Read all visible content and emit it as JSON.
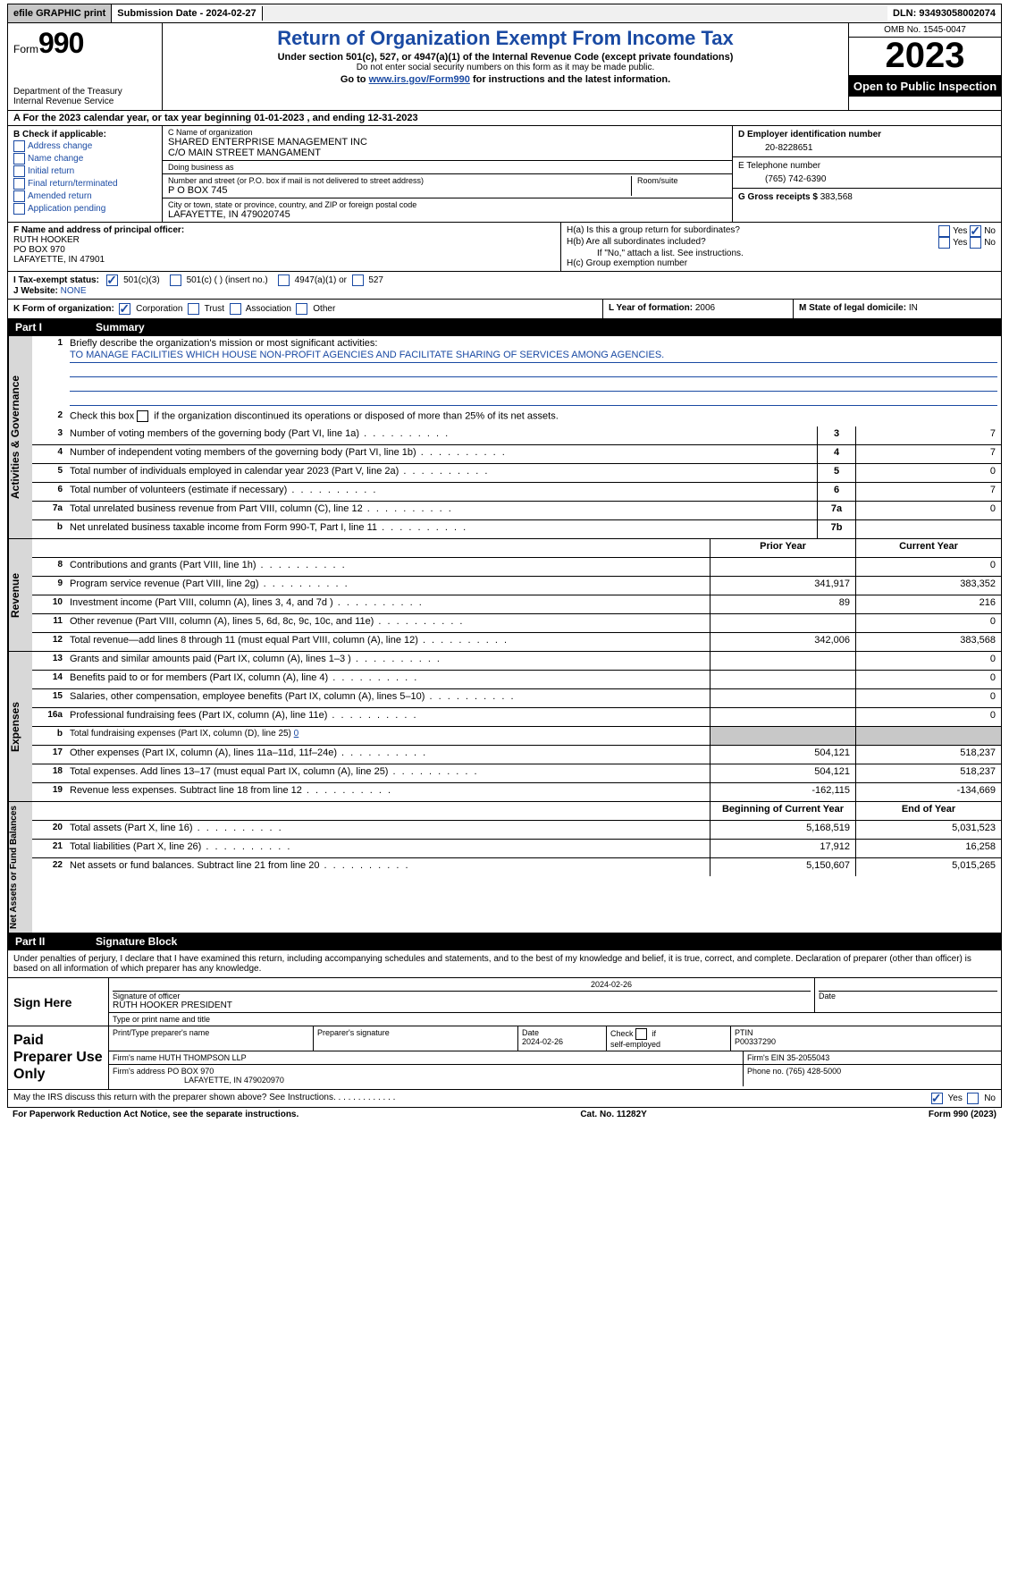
{
  "colors": {
    "link": "#1a4aa3",
    "header_bg": "#000000",
    "header_fg": "#ffffff",
    "side_bg": "#d8d8d8",
    "grey_cell": "#c8c8c8"
  },
  "topbar": {
    "efile": "efile GRAPHIC print",
    "submission_label": "Submission Date - ",
    "submission_date": "2024-02-27",
    "dln_label": "DLN: ",
    "dln": "93493058002074"
  },
  "header": {
    "form_prefix": "Form",
    "form_number": "990",
    "dept": "Department of the Treasury",
    "irs": "Internal Revenue Service",
    "title": "Return of Organization Exempt From Income Tax",
    "sub1": "Under section 501(c), 527, or 4947(a)(1) of the Internal Revenue Code (except private foundations)",
    "sub2": "Do not enter social security numbers on this form as it may be made public.",
    "sub3_pre": "Go to ",
    "sub3_link": "www.irs.gov/Form990",
    "sub3_post": " for instructions and the latest information.",
    "omb": "OMB No. 1545-0047",
    "year": "2023",
    "open": "Open to Public Inspection"
  },
  "row_a": "A   For the 2023 calendar year, or tax year beginning 01-01-2023     , and ending 12-31-2023",
  "box_b": {
    "title": "B Check if applicable:",
    "items": [
      "Address change",
      "Name change",
      "Initial return",
      "Final return/terminated",
      "Amended return",
      "Application pending"
    ]
  },
  "box_c": {
    "name_lbl": "C Name of organization",
    "name1": "SHARED ENTERPRISE MANAGEMENT INC",
    "name2": "C/O MAIN STREET MANGAMENT",
    "dba_lbl": "Doing business as",
    "dba": "",
    "street_lbl": "Number and street (or P.O. box if mail is not delivered to street address)",
    "street": "P O BOX 745",
    "room_lbl": "Room/suite",
    "city_lbl": "City or town, state or province, country, and ZIP or foreign postal code",
    "city": "LAFAYETTE, IN  479020745"
  },
  "box_d": {
    "lbl": "D Employer identification number",
    "val": "20-8228651"
  },
  "box_e": {
    "lbl": "E Telephone number",
    "val": "(765) 742-6390"
  },
  "box_g": {
    "lbl": "G Gross receipts $ ",
    "val": "383,568"
  },
  "box_f": {
    "lbl": "F  Name and address of principal officer:",
    "line1": "RUTH HOOKER",
    "line2": "PO BOX 970",
    "line3": "LAFAYETTE, IN  47901"
  },
  "box_h": {
    "a_lbl": "H(a)  Is this a group return for subordinates?",
    "a_yes": "Yes",
    "a_no": "No",
    "b_lbl": "H(b)  Are all subordinates included?",
    "b_yes": "Yes",
    "b_no": "No",
    "b_note": "If \"No,\" attach a list. See instructions.",
    "c_lbl": "H(c)  Group exemption number  "
  },
  "row_i": {
    "lbl": "I     Tax-exempt status:",
    "opt1": "501(c)(3)",
    "opt2": "501(c) (  ) (insert no.)",
    "opt3": "4947(a)(1) or",
    "opt4": "527"
  },
  "row_j": {
    "lbl": "J    Website: ",
    "val": "NONE"
  },
  "row_k": {
    "lbl": "K Form of organization:",
    "opts": [
      "Corporation",
      "Trust",
      "Association",
      "Other"
    ],
    "l_lbl": "L Year of formation: ",
    "l_val": "2006",
    "m_lbl": "M State of legal domicile: ",
    "m_val": "IN"
  },
  "part1": {
    "num": "Part I",
    "title": "Summary"
  },
  "governance": {
    "side": "Activities & Governance",
    "q1_lbl": "Briefly describe the organization's mission or most significant activities:",
    "q1_val": "TO MANAGE FACILITIES WHICH HOUSE NON-PROFIT AGENCIES AND FACILITATE SHARING OF SERVICES AMONG AGENCIES.",
    "q2": "Check this box         if the organization discontinued its operations or disposed of more than 25% of its net assets.",
    "rows": [
      {
        "n": "3",
        "d": "Number of voting members of the governing body (Part VI, line 1a)",
        "c": "3",
        "v": "7"
      },
      {
        "n": "4",
        "d": "Number of independent voting members of the governing body (Part VI, line 1b)",
        "c": "4",
        "v": "7"
      },
      {
        "n": "5",
        "d": "Total number of individuals employed in calendar year 2023 (Part V, line 2a)",
        "c": "5",
        "v": "0"
      },
      {
        "n": "6",
        "d": "Total number of volunteers (estimate if necessary)",
        "c": "6",
        "v": "7"
      },
      {
        "n": "7a",
        "d": "Total unrelated business revenue from Part VIII, column (C), line 12",
        "c": "7a",
        "v": "0"
      },
      {
        "n": " b",
        "d": "Net unrelated business taxable income from Form 990-T, Part I, line 11",
        "c": "7b",
        "v": ""
      }
    ]
  },
  "revenue": {
    "side": "Revenue",
    "hdr_prior": "Prior Year",
    "hdr_curr": "Current Year",
    "rows": [
      {
        "n": "8",
        "d": "Contributions and grants (Part VIII, line 1h)",
        "p": "",
        "c": "0"
      },
      {
        "n": "9",
        "d": "Program service revenue (Part VIII, line 2g)",
        "p": "341,917",
        "c": "383,352"
      },
      {
        "n": "10",
        "d": "Investment income (Part VIII, column (A), lines 3, 4, and 7d )",
        "p": "89",
        "c": "216"
      },
      {
        "n": "11",
        "d": "Other revenue (Part VIII, column (A), lines 5, 6d, 8c, 9c, 10c, and 11e)",
        "p": "",
        "c": "0"
      },
      {
        "n": "12",
        "d": "Total revenue—add lines 8 through 11 (must equal Part VIII, column (A), line 12)",
        "p": "342,006",
        "c": "383,568"
      }
    ]
  },
  "expenses": {
    "side": "Expenses",
    "rows": [
      {
        "n": "13",
        "d": "Grants and similar amounts paid (Part IX, column (A), lines 1–3 )",
        "p": "",
        "c": "0"
      },
      {
        "n": "14",
        "d": "Benefits paid to or for members (Part IX, column (A), line 4)",
        "p": "",
        "c": "0"
      },
      {
        "n": "15",
        "d": "Salaries, other compensation, employee benefits (Part IX, column (A), lines 5–10)",
        "p": "",
        "c": "0"
      },
      {
        "n": "16a",
        "d": "Professional fundraising fees (Part IX, column (A), line 11e)",
        "p": "",
        "c": "0"
      },
      {
        "n": "  b",
        "d": "Total fundraising expenses (Part IX, column (D), line 25) 0",
        "p": "grey",
        "c": "grey"
      },
      {
        "n": "17",
        "d": "Other expenses (Part IX, column (A), lines 11a–11d, 11f–24e)",
        "p": "504,121",
        "c": "518,237"
      },
      {
        "n": "18",
        "d": "Total expenses. Add lines 13–17 (must equal Part IX, column (A), line 25)",
        "p": "504,121",
        "c": "518,237"
      },
      {
        "n": "19",
        "d": "Revenue less expenses. Subtract line 18 from line 12",
        "p": "-162,115",
        "c": "-134,669"
      }
    ]
  },
  "netassets": {
    "side": "Net Assets or Fund Balances",
    "hdr_begin": "Beginning of Current Year",
    "hdr_end": "End of Year",
    "rows": [
      {
        "n": "20",
        "d": "Total assets (Part X, line 16)",
        "p": "5,168,519",
        "c": "5,031,523"
      },
      {
        "n": "21",
        "d": "Total liabilities (Part X, line 26)",
        "p": "17,912",
        "c": "16,258"
      },
      {
        "n": "22",
        "d": "Net assets or fund balances. Subtract line 21 from line 20",
        "p": "5,150,607",
        "c": "5,015,265"
      }
    ]
  },
  "part2": {
    "num": "Part II",
    "title": "Signature Block"
  },
  "sig": {
    "penalties": "Under penalties of perjury, I declare that I have examined this return, including accompanying schedules and statements, and to the best of my knowledge and belief, it is true, correct, and complete. Declaration of preparer (other than officer) is based on all information of which preparer has any knowledge.",
    "sign_here": "Sign Here",
    "sig_officer_lbl": "Signature of officer",
    "officer_name": "RUTH HOOKER  PRESIDENT",
    "type_lbl": "Type or print name and title",
    "date_lbl": "Date",
    "sig_date": "2024-02-26",
    "paid": "Paid Preparer Use Only",
    "prep_name_lbl": "Print/Type preparer's name",
    "prep_sig_lbl": "Preparer's signature",
    "prep_date_lbl": "Date",
    "prep_date": "2024-02-26",
    "self_emp_lbl": "Check         if self-employed",
    "ptin_lbl": "PTIN",
    "ptin": "P00337290",
    "firm_name_lbl": "Firm's name   ",
    "firm_name": "HUTH THOMPSON LLP",
    "firm_ein_lbl": "Firm's EIN  ",
    "firm_ein": "35-2055043",
    "firm_addr_lbl": "Firm's address ",
    "firm_addr1": "PO BOX 970",
    "firm_addr2": "LAFAYETTE, IN  479020970",
    "phone_lbl": "Phone no. ",
    "phone": "(765) 428-5000",
    "discuss": "May the IRS discuss this return with the preparer shown above? See Instructions.",
    "yes": "Yes",
    "no": "No"
  },
  "footer": {
    "left": "For Paperwork Reduction Act Notice, see the separate instructions.",
    "mid": "Cat. No. 11282Y",
    "right_pre": "Form ",
    "right_bold": "990",
    "right_post": " (2023)"
  }
}
